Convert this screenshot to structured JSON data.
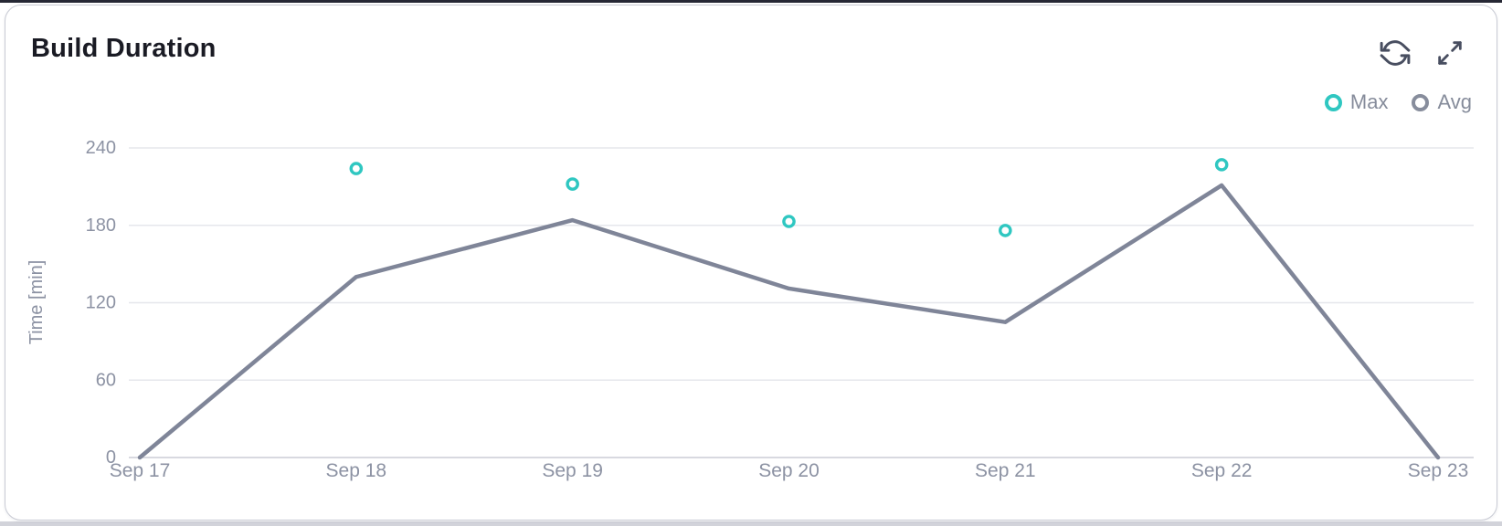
{
  "header": {
    "title": "Build Duration",
    "icons": [
      "refresh-icon",
      "expand-icon"
    ]
  },
  "legend": [
    {
      "label": "Max",
      "color": "#2fc7c1"
    },
    {
      "label": "Avg",
      "color": "#878d9c"
    }
  ],
  "colors": {
    "title_text": "#1a1b24",
    "axis_text": "#8c92a3",
    "grid_line": "#e6e7ec",
    "axis_line": "#d8d9e0",
    "max_series": "#2fc7c1",
    "avg_series": "#7f8598",
    "icon": "#484e60",
    "card_border": "#c9cbd4"
  },
  "chart_data": {
    "type": "line",
    "title": "Build Duration",
    "categories": [
      "Sep 17",
      "Sep 18",
      "Sep 19",
      "Sep 20",
      "Sep 21",
      "Sep 22",
      "Sep 23"
    ],
    "series": [
      {
        "name": "Max",
        "type": "scatter",
        "color": "#2fc7c1",
        "values": [
          null,
          224,
          212,
          183,
          176,
          227,
          null
        ]
      },
      {
        "name": "Avg",
        "type": "line",
        "color": "#7f8598",
        "values": [
          0,
          140,
          184,
          131,
          105,
          211,
          0
        ]
      }
    ],
    "xlabel": "",
    "ylabel": "Time [min]",
    "ylim": [
      0,
      240
    ],
    "yticks": [
      0,
      60,
      120,
      180,
      240
    ],
    "grid": true,
    "legend_position": "top-right"
  }
}
